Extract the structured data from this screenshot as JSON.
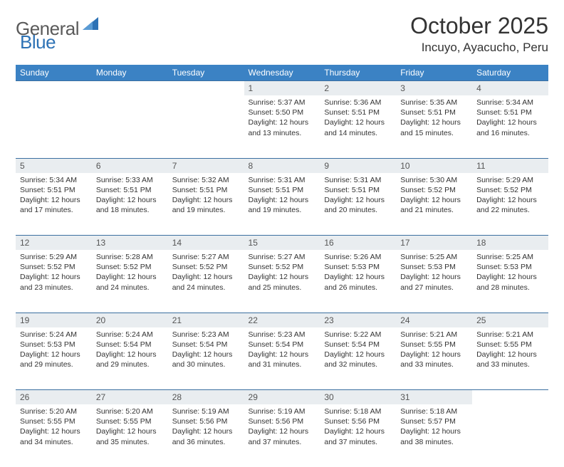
{
  "brand": {
    "part1": "General",
    "part2": "Blue"
  },
  "title": "October 2025",
  "location": "Incuyo, Ayacucho, Peru",
  "colors": {
    "header_bg": "#3b82c4",
    "header_text": "#ffffff",
    "daynum_bg": "#e9edf0",
    "rule": "#3b6fa0",
    "brand_gray": "#5a5a5a",
    "brand_blue": "#2d72b5"
  },
  "weekdays": [
    "Sunday",
    "Monday",
    "Tuesday",
    "Wednesday",
    "Thursday",
    "Friday",
    "Saturday"
  ],
  "layout": {
    "first_weekday_index": 3,
    "days_in_month": 31
  },
  "labels": {
    "sunrise": "Sunrise",
    "sunset": "Sunset",
    "daylight": "Daylight"
  },
  "days": {
    "1": {
      "sunrise": "5:37 AM",
      "sunset": "5:50 PM",
      "daylight": "12 hours and 13 minutes."
    },
    "2": {
      "sunrise": "5:36 AM",
      "sunset": "5:51 PM",
      "daylight": "12 hours and 14 minutes."
    },
    "3": {
      "sunrise": "5:35 AM",
      "sunset": "5:51 PM",
      "daylight": "12 hours and 15 minutes."
    },
    "4": {
      "sunrise": "5:34 AM",
      "sunset": "5:51 PM",
      "daylight": "12 hours and 16 minutes."
    },
    "5": {
      "sunrise": "5:34 AM",
      "sunset": "5:51 PM",
      "daylight": "12 hours and 17 minutes."
    },
    "6": {
      "sunrise": "5:33 AM",
      "sunset": "5:51 PM",
      "daylight": "12 hours and 18 minutes."
    },
    "7": {
      "sunrise": "5:32 AM",
      "sunset": "5:51 PM",
      "daylight": "12 hours and 19 minutes."
    },
    "8": {
      "sunrise": "5:31 AM",
      "sunset": "5:51 PM",
      "daylight": "12 hours and 19 minutes."
    },
    "9": {
      "sunrise": "5:31 AM",
      "sunset": "5:51 PM",
      "daylight": "12 hours and 20 minutes."
    },
    "10": {
      "sunrise": "5:30 AM",
      "sunset": "5:52 PM",
      "daylight": "12 hours and 21 minutes."
    },
    "11": {
      "sunrise": "5:29 AM",
      "sunset": "5:52 PM",
      "daylight": "12 hours and 22 minutes."
    },
    "12": {
      "sunrise": "5:29 AM",
      "sunset": "5:52 PM",
      "daylight": "12 hours and 23 minutes."
    },
    "13": {
      "sunrise": "5:28 AM",
      "sunset": "5:52 PM",
      "daylight": "12 hours and 24 minutes."
    },
    "14": {
      "sunrise": "5:27 AM",
      "sunset": "5:52 PM",
      "daylight": "12 hours and 24 minutes."
    },
    "15": {
      "sunrise": "5:27 AM",
      "sunset": "5:52 PM",
      "daylight": "12 hours and 25 minutes."
    },
    "16": {
      "sunrise": "5:26 AM",
      "sunset": "5:53 PM",
      "daylight": "12 hours and 26 minutes."
    },
    "17": {
      "sunrise": "5:25 AM",
      "sunset": "5:53 PM",
      "daylight": "12 hours and 27 minutes."
    },
    "18": {
      "sunrise": "5:25 AM",
      "sunset": "5:53 PM",
      "daylight": "12 hours and 28 minutes."
    },
    "19": {
      "sunrise": "5:24 AM",
      "sunset": "5:53 PM",
      "daylight": "12 hours and 29 minutes."
    },
    "20": {
      "sunrise": "5:24 AM",
      "sunset": "5:54 PM",
      "daylight": "12 hours and 29 minutes."
    },
    "21": {
      "sunrise": "5:23 AM",
      "sunset": "5:54 PM",
      "daylight": "12 hours and 30 minutes."
    },
    "22": {
      "sunrise": "5:23 AM",
      "sunset": "5:54 PM",
      "daylight": "12 hours and 31 minutes."
    },
    "23": {
      "sunrise": "5:22 AM",
      "sunset": "5:54 PM",
      "daylight": "12 hours and 32 minutes."
    },
    "24": {
      "sunrise": "5:21 AM",
      "sunset": "5:55 PM",
      "daylight": "12 hours and 33 minutes."
    },
    "25": {
      "sunrise": "5:21 AM",
      "sunset": "5:55 PM",
      "daylight": "12 hours and 33 minutes."
    },
    "26": {
      "sunrise": "5:20 AM",
      "sunset": "5:55 PM",
      "daylight": "12 hours and 34 minutes."
    },
    "27": {
      "sunrise": "5:20 AM",
      "sunset": "5:55 PM",
      "daylight": "12 hours and 35 minutes."
    },
    "28": {
      "sunrise": "5:19 AM",
      "sunset": "5:56 PM",
      "daylight": "12 hours and 36 minutes."
    },
    "29": {
      "sunrise": "5:19 AM",
      "sunset": "5:56 PM",
      "daylight": "12 hours and 37 minutes."
    },
    "30": {
      "sunrise": "5:18 AM",
      "sunset": "5:56 PM",
      "daylight": "12 hours and 37 minutes."
    },
    "31": {
      "sunrise": "5:18 AM",
      "sunset": "5:57 PM",
      "daylight": "12 hours and 38 minutes."
    }
  }
}
